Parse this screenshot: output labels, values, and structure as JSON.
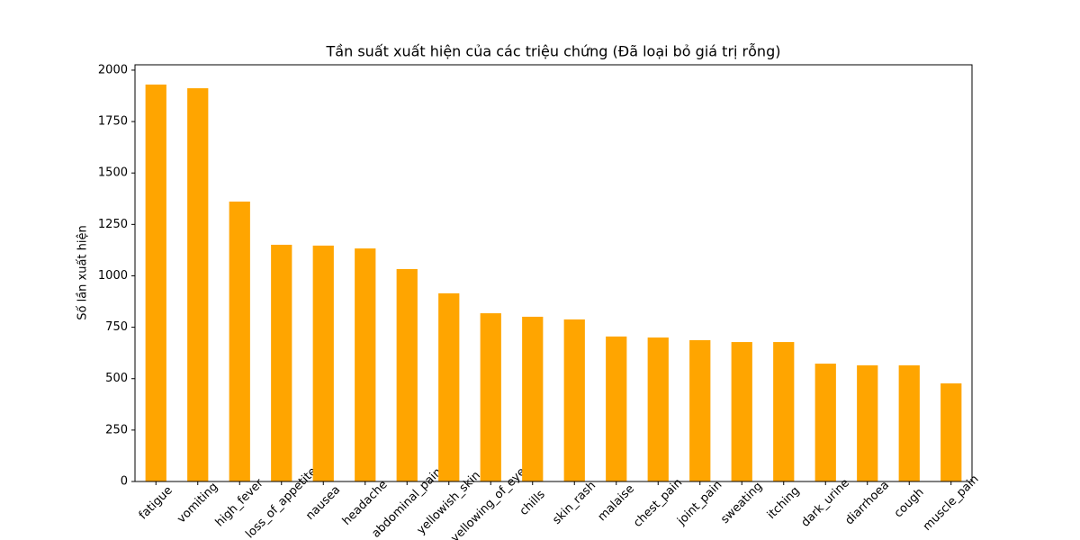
{
  "chart_data": {
    "type": "bar",
    "title": "Tần suất xuất hiện của các triệu chứng (Đã loại bỏ giá trị rỗng)",
    "y_label": "Số lần xuất hiện",
    "categories": [
      "fatigue",
      "vomiting",
      "high_fever",
      "loss_of_appetite",
      "nausea",
      "headache",
      "abdominal_pain",
      "yellowish_skin",
      "yellowing_of_eyes",
      "chills",
      "skin_rash",
      "malaise",
      "chest_pain",
      "joint_pain",
      "sweating",
      "itching",
      "dark_urine",
      "diarrhoea",
      "cough",
      "muscle_pain"
    ],
    "values": [
      1930,
      1912,
      1361,
      1151,
      1147,
      1133,
      1033,
      915,
      818,
      801,
      788,
      705,
      700,
      687,
      678,
      678,
      573,
      565,
      565,
      477
    ],
    "color": "#ffa500",
    "ylim": [
      0,
      2026
    ],
    "yticks": [
      0,
      250,
      500,
      750,
      1000,
      1250,
      1500,
      1750,
      2000
    ],
    "grid": false
  }
}
